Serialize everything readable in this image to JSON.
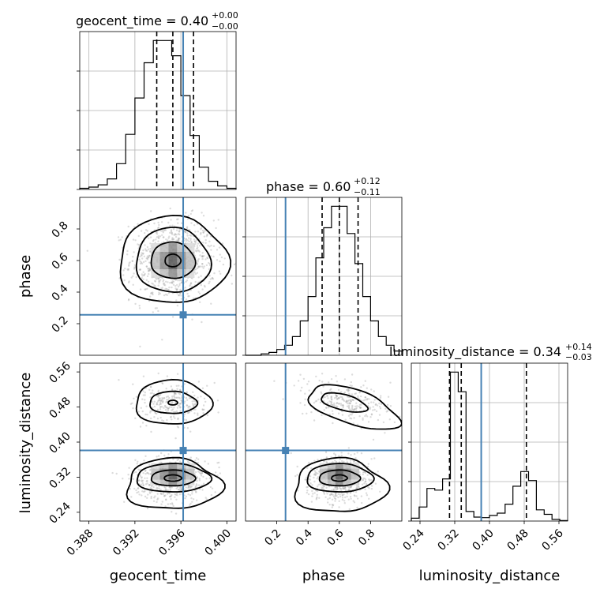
{
  "chart_data": {
    "type": "corner",
    "parameters": [
      {
        "name": "geocent_time",
        "range": [
          0.3872,
          0.4008
        ],
        "ticks": [
          "0.388",
          "0.392",
          "0.396",
          "0.400"
        ],
        "tick_values": [
          0.388,
          0.392,
          0.396,
          0.4
        ],
        "title": {
          "base": "geocent_time = 0.40",
          "sup": "+0.00",
          "sub": "−0.00"
        },
        "quantiles": [
          0.3939,
          0.3953,
          0.3971
        ],
        "truth": 0.3962,
        "hist_bins": [
          0.3872,
          0.388,
          0.3888,
          0.3896,
          0.3904,
          0.3912,
          0.392,
          0.3928,
          0.3936,
          0.3944,
          0.3952,
          0.396,
          0.3968,
          0.3976,
          0.3984,
          0.3992,
          0.4,
          0.4008
        ],
        "hist_counts": [
          1,
          2,
          4,
          9,
          22,
          47,
          78,
          108,
          127,
          127,
          114,
          80,
          46,
          19,
          7,
          3,
          1
        ]
      },
      {
        "name": "phase",
        "range": [
          0.0,
          1.0
        ],
        "ticks": [
          "0.2",
          "0.4",
          "0.6",
          "0.8"
        ],
        "tick_values": [
          0.2,
          0.4,
          0.6,
          0.8
        ],
        "title": {
          "base": "phase = 0.60",
          "sup": "+0.12",
          "sub": "−0.11"
        },
        "quantiles": [
          0.49,
          0.6,
          0.72
        ],
        "truth": 0.256,
        "hist_bins": [
          0.0,
          0.05,
          0.1,
          0.15,
          0.2,
          0.25,
          0.3,
          0.35,
          0.4,
          0.45,
          0.5,
          0.55,
          0.6,
          0.65,
          0.7,
          0.75,
          0.8,
          0.85,
          0.9,
          0.95,
          1.0
        ],
        "hist_counts": [
          0,
          0,
          1,
          2,
          4,
          7,
          13,
          24,
          41,
          68,
          89,
          104,
          104,
          85,
          64,
          41,
          24,
          13,
          7,
          3
        ]
      },
      {
        "name": "luminosity_distance",
        "range": [
          0.22,
          0.58
        ],
        "ticks": [
          "0.24",
          "0.32",
          "0.40",
          "0.48",
          "0.56"
        ],
        "tick_values": [
          0.24,
          0.32,
          0.4,
          0.48,
          0.56
        ],
        "title": {
          "base": "luminosity_distance = 0.34",
          "sup": "+0.14",
          "sub": "−0.03"
        },
        "quantiles": [
          0.308,
          0.335,
          0.485
        ],
        "truth": 0.381,
        "hist_bins": [
          0.22,
          0.238,
          0.256,
          0.274,
          0.292,
          0.31,
          0.328,
          0.346,
          0.364,
          0.382,
          0.4,
          0.418,
          0.436,
          0.454,
          0.472,
          0.49,
          0.508,
          0.526,
          0.544,
          0.562,
          0.58
        ],
        "hist_counts": [
          5,
          25,
          58,
          55,
          75,
          265,
          230,
          17,
          7,
          6,
          10,
          14,
          30,
          62,
          88,
          72,
          20,
          12,
          3,
          1
        ]
      }
    ],
    "truth_marker": {
      "geocent_time": 0.3962,
      "phase": 0.256,
      "luminosity_distance": 0.381
    },
    "xlabel_geocent": "geocent_time",
    "xlabel_phase": "phase",
    "xlabel_lumdist": "luminosity_distance",
    "ylabel_phase": "phase",
    "ylabel_lumdist": "luminosity_distance"
  },
  "colors": {
    "truth": "#4682b4",
    "scatter": "#9a9a9a",
    "grid": "#b0b0b0",
    "line": "#000000"
  }
}
